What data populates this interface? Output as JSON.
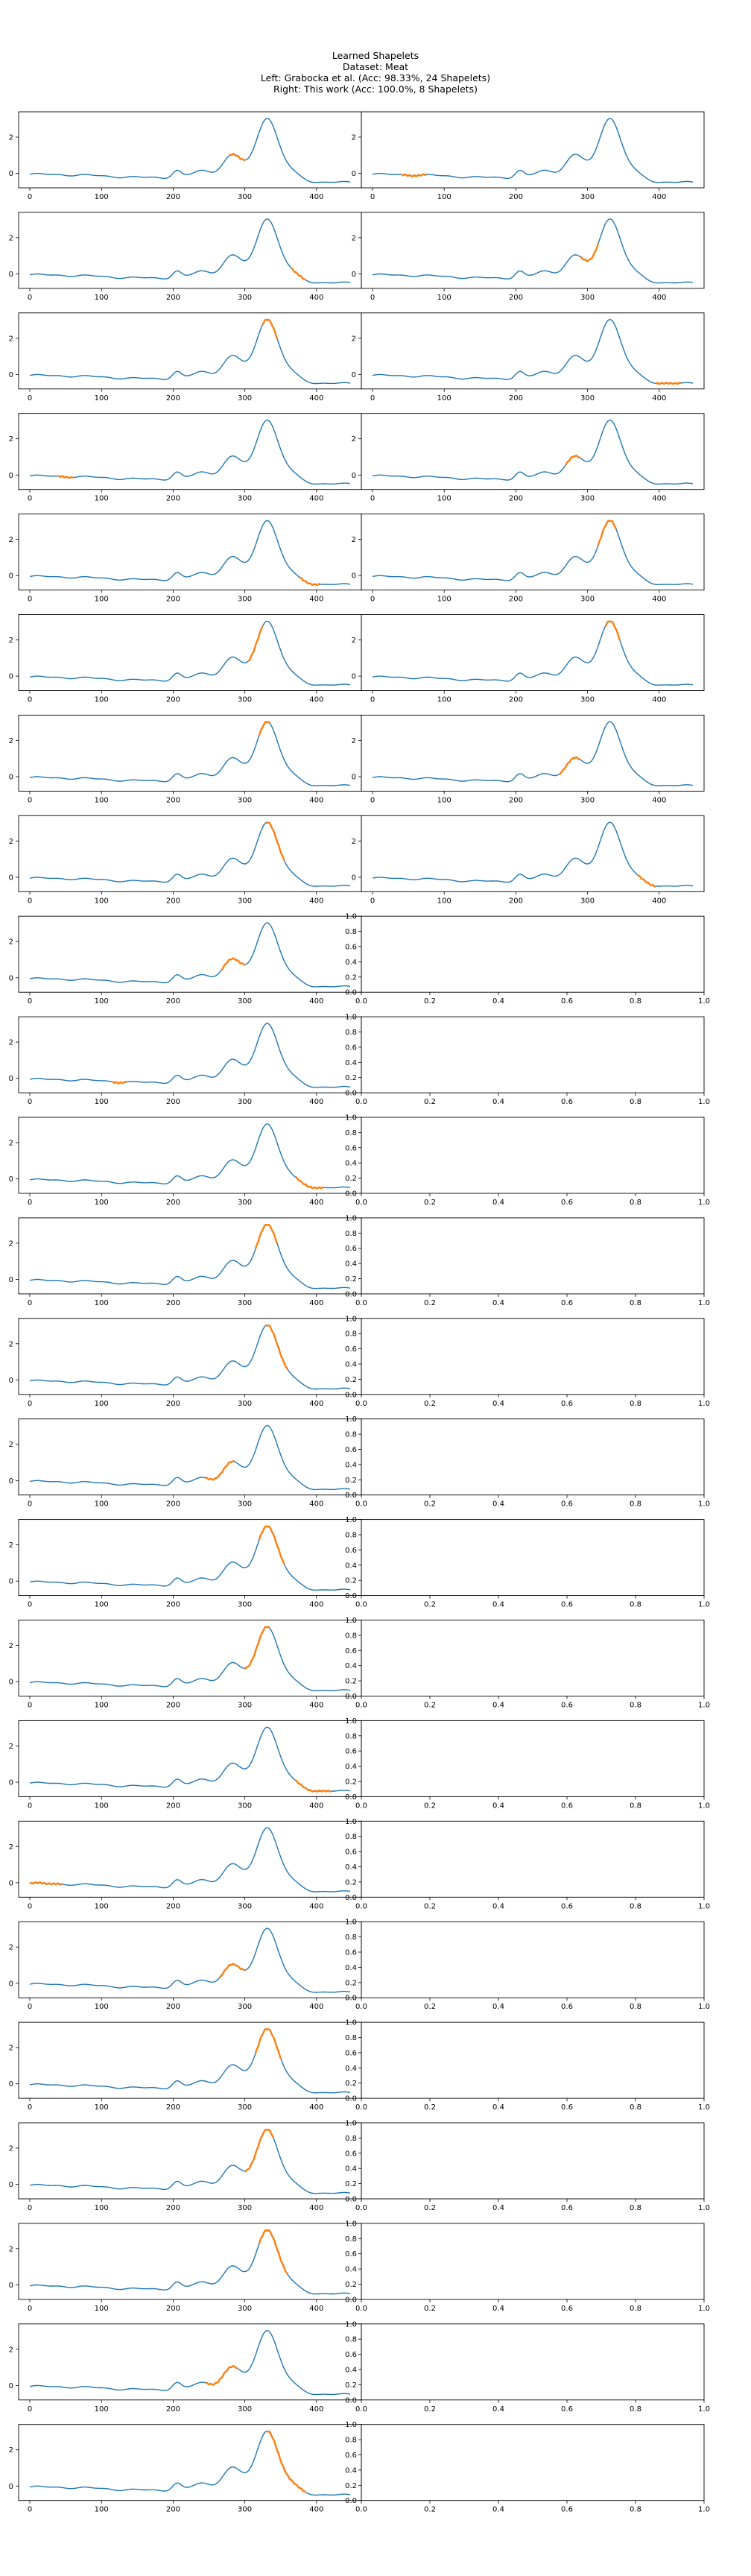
{
  "figure": {
    "title_lines": [
      "Learned Shapelets",
      "Dataset: Meat",
      "Left: Grabocka et al. (Acc: 98.33%, 24 Shapelets)",
      "Right: This work (Acc: 100.0%, 8 Shapelets)"
    ],
    "series_color": "#1f77b4",
    "shapelet_color": "#ff7f0e"
  },
  "chart_data": {
    "type": "line",
    "grid": false,
    "series_x_range": [
      0,
      447
    ],
    "series_y_range": [
      -0.55,
      3.15
    ],
    "xticks": [
      0,
      100,
      200,
      300,
      400
    ],
    "yticks": [
      0,
      2
    ],
    "empty_xticks": [
      "0.0",
      "0.2",
      "0.4",
      "0.6",
      "0.8",
      "1.0"
    ],
    "empty_yticks": [
      "0.0",
      "0.2",
      "0.4",
      "0.6",
      "0.8",
      "1.0"
    ],
    "left_shapelets": [
      {
        "start": 278,
        "end": 300
      },
      {
        "start": 365,
        "end": 385
      },
      {
        "start": 325,
        "end": 345
      },
      {
        "start": 40,
        "end": 60
      },
      {
        "start": 375,
        "end": 405
      },
      {
        "start": 305,
        "end": 325
      },
      {
        "start": 320,
        "end": 335
      },
      {
        "start": 330,
        "end": 355
      },
      {
        "start": 268,
        "end": 300
      },
      {
        "start": 115,
        "end": 135
      },
      {
        "start": 370,
        "end": 410
      },
      {
        "start": 315,
        "end": 345
      },
      {
        "start": 330,
        "end": 360
      },
      {
        "start": 245,
        "end": 285
      },
      {
        "start": 320,
        "end": 355
      },
      {
        "start": 300,
        "end": 335
      },
      {
        "start": 370,
        "end": 420
      },
      {
        "start": 0,
        "end": 45
      },
      {
        "start": 265,
        "end": 300
      },
      {
        "start": 315,
        "end": 350
      },
      {
        "start": 300,
        "end": 340
      },
      {
        "start": 320,
        "end": 360
      },
      {
        "start": 245,
        "end": 290
      },
      {
        "start": 330,
        "end": 385
      }
    ],
    "right_shapelets": [
      {
        "start": 40,
        "end": 75
      },
      {
        "start": 290,
        "end": 315
      },
      {
        "start": 395,
        "end": 430
      },
      {
        "start": 270,
        "end": 290
      },
      {
        "start": 315,
        "end": 340
      },
      {
        "start": 325,
        "end": 345
      },
      {
        "start": 260,
        "end": 290
      },
      {
        "start": 370,
        "end": 395
      }
    ]
  }
}
